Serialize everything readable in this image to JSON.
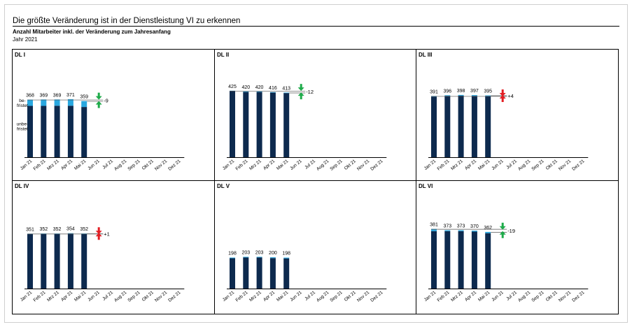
{
  "title": "Die größte Veränderung ist in der Dienstleistung VI zu erkennen",
  "subtitle": "Anzahl Mitarbeiter inkl. der Veränderung zum Jahresanfang",
  "year_label": "Jahr 2021",
  "colors": {
    "unbefristet": "#0d2a4e",
    "befristet": "#29a8e0",
    "up": "#e31e24",
    "down": "#1eab4a"
  },
  "chart_data": [
    {
      "type": "bar",
      "panel": "DL I",
      "categories": [
        "Jan 21",
        "Feb 21",
        "Mrz 21",
        "Apr 21",
        "Mai 21",
        "Jun 21",
        "Jul 21",
        "Aug 21",
        "Sep 21",
        "Okt 21",
        "Nov 21",
        "Dez 21"
      ],
      "totals": [
        368,
        369,
        369,
        371,
        359
      ],
      "befristet": [
        40,
        41,
        40,
        42,
        38
      ],
      "change": "-9",
      "segment_labels": [
        "be-\nfristet",
        "unbe-\nfristet"
      ],
      "ylim": [
        0,
        500
      ]
    },
    {
      "type": "bar",
      "panel": "DL II",
      "categories": [
        "Jan 21",
        "Feb 21",
        "Mrz 21",
        "Apr 21",
        "Mai 21",
        "Jun 21",
        "Jul 21",
        "Aug 21",
        "Sep 21",
        "Okt 21",
        "Nov 21",
        "Dez 21"
      ],
      "totals": [
        425,
        420,
        420,
        416,
        413
      ],
      "befristet": [
        3,
        3,
        3,
        3,
        3
      ],
      "change": "-12",
      "ylim": [
        0,
        500
      ]
    },
    {
      "type": "bar",
      "panel": "DL III",
      "categories": [
        "Jan 21",
        "Feb 21",
        "Mrz 21",
        "Apr 21",
        "Mai 21",
        "Jun 21",
        "Jul 21",
        "Aug 21",
        "Sep 21",
        "Okt 21",
        "Nov 21",
        "Dez 21"
      ],
      "totals": [
        391,
        396,
        398,
        397,
        395
      ],
      "befristet": [
        4,
        4,
        5,
        5,
        4
      ],
      "change": "+4",
      "ylim": [
        0,
        500
      ]
    },
    {
      "type": "bar",
      "panel": "DL IV",
      "categories": [
        "Jan 21",
        "Feb 21",
        "Mrz 21",
        "Apr 21",
        "Mai 21",
        "Jun 21",
        "Jul 21",
        "Aug 21",
        "Sep 21",
        "Okt 21",
        "Nov 21",
        "Dez 21"
      ],
      "totals": [
        351,
        352,
        352,
        354,
        352
      ],
      "befristet": [
        2,
        2,
        2,
        2,
        2
      ],
      "change": "+1",
      "ylim": [
        0,
        500
      ]
    },
    {
      "type": "bar",
      "panel": "DL V",
      "categories": [
        "Jan 21",
        "Feb 21",
        "Mrz 21",
        "Apr 21",
        "Mai 21",
        "Jun 21",
        "Jul 21",
        "Aug 21",
        "Sep 21",
        "Okt 21",
        "Nov 21",
        "Dez 21"
      ],
      "totals": [
        198,
        203,
        203,
        200,
        198
      ],
      "befristet": [
        4,
        4,
        4,
        5,
        5
      ],
      "ylim": [
        0,
        500
      ]
    },
    {
      "type": "bar",
      "panel": "DL VI",
      "categories": [
        "Jan 21",
        "Feb 21",
        "Mrz 21",
        "Apr 21",
        "Mai 21",
        "Jun 21",
        "Jul 21",
        "Aug 21",
        "Sep 21",
        "Okt 21",
        "Nov 21",
        "Dez 21"
      ],
      "totals": [
        381,
        373,
        373,
        370,
        362
      ],
      "befristet": [
        14,
        6,
        6,
        6,
        8
      ],
      "change": "-19",
      "ylim": [
        0,
        500
      ]
    }
  ]
}
